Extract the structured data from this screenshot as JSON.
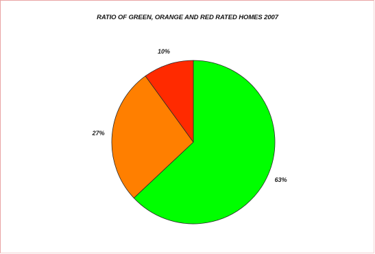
{
  "chart_data": {
    "type": "pie",
    "title": "RATIO OF GREEN, ORANGE AND RED RATED HOMES 2007",
    "slices": [
      {
        "value": 63,
        "label": "63%",
        "color": "#00ff00"
      },
      {
        "value": 27,
        "label": "27%",
        "color": "#ff7f00"
      },
      {
        "value": 10,
        "label": "10%",
        "color": "#ff2a00"
      }
    ],
    "start_angle_deg": 0,
    "direction": "clockwise",
    "legend": "none"
  }
}
